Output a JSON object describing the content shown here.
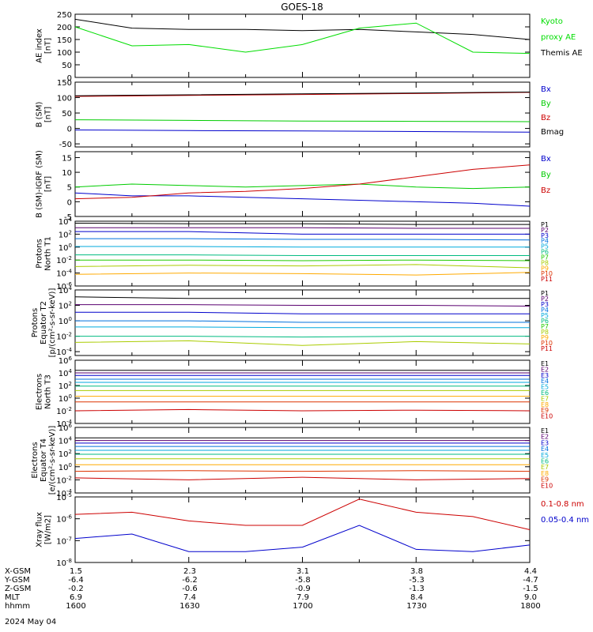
{
  "title": "GOES-18",
  "date_label": "2024 May 04",
  "x_rows": [
    {
      "label": "X-GSM",
      "values": [
        "1.5",
        "2.3",
        "3.1",
        "3.8",
        "4.4"
      ]
    },
    {
      "label": "Y-GSM",
      "values": [
        "-6.4",
        "-6.2",
        "-5.8",
        "-5.3",
        "-4.7"
      ]
    },
    {
      "label": "Z-GSM",
      "values": [
        "-0.2",
        "-0.6",
        "-0.9",
        "-1.3",
        "-1.5"
      ]
    },
    {
      "label": "MLT",
      "values": [
        "6.9",
        "7.4",
        "7.9",
        "8.4",
        "9.0"
      ]
    },
    {
      "label": "hhmm",
      "values": [
        "1600",
        "1630",
        "1700",
        "1730",
        "1800"
      ]
    }
  ],
  "chart_data": [
    {
      "type": "line",
      "ylabel": [
        "AE index",
        "[nT]"
      ],
      "ylim": [
        0,
        250
      ],
      "yticks": [
        "0",
        "50",
        "100",
        "150",
        "200",
        "250"
      ],
      "x": [
        "16:00",
        "16:15",
        "16:30",
        "16:45",
        "17:00",
        "17:15",
        "17:30",
        "17:45",
        "18:00"
      ],
      "legend": [
        {
          "text": "Kyoto",
          "color": "#00dd00"
        },
        {
          "text": "proxy AE",
          "color": "#00dd00"
        },
        {
          "text": "Themis AE",
          "color": "#000000"
        }
      ],
      "series": [
        {
          "name": "Themis AE",
          "color": "#000000",
          "values": [
            230,
            195,
            190,
            190,
            185,
            190,
            180,
            170,
            150
          ]
        },
        {
          "name": "Kyoto proxy AE",
          "color": "#00dd00",
          "values": [
            200,
            125,
            130,
            100,
            130,
            195,
            215,
            100,
            95
          ]
        }
      ]
    },
    {
      "type": "line",
      "ylabel": [
        "B (SM)",
        "[nT]"
      ],
      "ylim": [
        -60,
        150
      ],
      "yticks": [
        "-50",
        "0",
        "50",
        "100",
        "150"
      ],
      "x": [
        "16:00",
        "16:30",
        "17:00",
        "17:30",
        "18:00"
      ],
      "legend": [
        {
          "text": "Bx",
          "color": "#0000cc"
        },
        {
          "text": "By",
          "color": "#00cc00"
        },
        {
          "text": "Bz",
          "color": "#cc0000"
        },
        {
          "text": "Bmag",
          "color": "#000000"
        }
      ],
      "series": [
        {
          "name": "Bx",
          "color": "#0000cc",
          "values": [
            -5,
            -7,
            -8,
            -10,
            -12
          ]
        },
        {
          "name": "By",
          "color": "#00cc00",
          "values": [
            28,
            26,
            24,
            23,
            22
          ]
        },
        {
          "name": "Bz",
          "color": "#cc0000",
          "values": [
            104,
            107,
            110,
            113,
            117
          ]
        },
        {
          "name": "Bmag",
          "color": "#000000",
          "values": [
            106,
            109,
            112,
            115,
            118
          ]
        }
      ]
    },
    {
      "type": "line",
      "ylabel": [
        "B (SM)-IGRF (SM)",
        "[nT]"
      ],
      "ylim": [
        -5,
        17
      ],
      "yticks": [
        "-5",
        "0",
        "5",
        "10",
        "15"
      ],
      "x": [
        "16:00",
        "16:15",
        "16:30",
        "16:45",
        "17:00",
        "17:15",
        "17:30",
        "17:45",
        "18:00"
      ],
      "legend": [
        {
          "text": "Bx",
          "color": "#0000cc"
        },
        {
          "text": "By",
          "color": "#00cc00"
        },
        {
          "text": "Bz",
          "color": "#cc0000"
        }
      ],
      "series": [
        {
          "name": "Bx",
          "color": "#0000cc",
          "values": [
            3,
            2,
            2,
            1.5,
            1,
            0.5,
            0,
            -0.5,
            -1.5
          ]
        },
        {
          "name": "By",
          "color": "#00cc00",
          "values": [
            5,
            6,
            5.5,
            5,
            5.5,
            6,
            5,
            4.5,
            5
          ]
        },
        {
          "name": "Bz",
          "color": "#cc0000",
          "values": [
            1,
            1.5,
            3,
            3.5,
            4.5,
            6,
            8.5,
            11,
            12.5
          ]
        }
      ]
    },
    {
      "type": "line",
      "log": true,
      "ylabel": [
        "Protons",
        "North T1"
      ],
      "ylim": [
        -6,
        4
      ],
      "yticks": [
        "10^4",
        "10^2",
        "10^0",
        "10^-2",
        "10^-4",
        "10^-6"
      ],
      "x": [
        "16:00",
        "16:30",
        "17:00",
        "17:30",
        "18:00"
      ],
      "legend": [
        {
          "text": "P1",
          "color": "#000000"
        },
        {
          "text": "P2",
          "color": "#5a0070"
        },
        {
          "text": "P3",
          "color": "#0000cc"
        },
        {
          "text": "P4",
          "color": "#0070dd"
        },
        {
          "text": "P5",
          "color": "#00aadd"
        },
        {
          "text": "P6",
          "color": "#00bb80"
        },
        {
          "text": "P7",
          "color": "#22cc00"
        },
        {
          "text": "P8",
          "color": "#aacc00"
        },
        {
          "text": "P9",
          "color": "#ffaa00"
        },
        {
          "text": "P10",
          "color": "#dd3300"
        },
        {
          "text": "P11",
          "color": "#cc0000"
        }
      ],
      "series": [
        {
          "name": "P1",
          "color": "#000000",
          "values": [
            3.7,
            3.6,
            3.6,
            3.5,
            3.5
          ]
        },
        {
          "name": "P2",
          "color": "#5a0070",
          "values": [
            3.0,
            3.0,
            3.0,
            2.9,
            2.9
          ]
        },
        {
          "name": "P3",
          "color": "#0000cc",
          "values": [
            2.4,
            2.4,
            2.0,
            2.0,
            2.0
          ]
        },
        {
          "name": "P4",
          "color": "#0070dd",
          "values": [
            1.3,
            1.3,
            1.2,
            1.2,
            1.1
          ]
        },
        {
          "name": "P5",
          "color": "#00aadd",
          "values": [
            0.1,
            0.1,
            0.0,
            0.0,
            0.0
          ]
        },
        {
          "name": "P6",
          "color": "#00bb80",
          "values": [
            -1.2,
            -1.2,
            -1.3,
            -1.3,
            -1.3
          ]
        },
        {
          "name": "P7",
          "color": "#22cc00",
          "values": [
            -2.0,
            -2.0,
            -2.1,
            -2.0,
            -2.1
          ]
        },
        {
          "name": "P8",
          "color": "#aacc00",
          "values": [
            -3.0,
            -2.8,
            -2.9,
            -2.7,
            -3.2
          ]
        },
        {
          "name": "P9",
          "color": "#ffaa00",
          "values": [
            -4.2,
            -4.0,
            -4.1,
            -4.3,
            -3.9
          ]
        }
      ]
    },
    {
      "type": "line",
      "log": true,
      "ylabel": [
        "Protons",
        "Equator T2",
        "[p/(cm²-s-sr-keV)]"
      ],
      "ylim": [
        -4.5,
        4
      ],
      "yticks": [
        "10^4",
        "10^2",
        "10^0",
        "10^-2",
        "10^-4"
      ],
      "x": [
        "16:00",
        "16:30",
        "17:00",
        "17:30",
        "18:00"
      ],
      "legend": [
        {
          "text": "P1",
          "color": "#000000"
        },
        {
          "text": "P2",
          "color": "#5a0070"
        },
        {
          "text": "P3",
          "color": "#0000cc"
        },
        {
          "text": "P4",
          "color": "#0070dd"
        },
        {
          "text": "P5",
          "color": "#00aadd"
        },
        {
          "text": "P6",
          "color": "#00bb80"
        },
        {
          "text": "P7",
          "color": "#22cc00"
        },
        {
          "text": "P8",
          "color": "#aacc00"
        },
        {
          "text": "P9",
          "color": "#ffaa00"
        },
        {
          "text": "P10",
          "color": "#dd3300"
        },
        {
          "text": "P11",
          "color": "#cc0000"
        }
      ],
      "series": [
        {
          "name": "P1",
          "color": "#000000",
          "values": [
            3.1,
            2.9,
            2.9,
            2.9,
            2.9
          ]
        },
        {
          "name": "P2",
          "color": "#5a0070",
          "values": [
            2.1,
            2.1,
            2.0,
            2.0,
            1.9
          ]
        },
        {
          "name": "P3",
          "color": "#0000cc",
          "values": [
            1.1,
            1.1,
            0.9,
            0.9,
            0.9
          ]
        },
        {
          "name": "P4",
          "color": "#0070dd",
          "values": [
            0.0,
            0.0,
            -0.2,
            -0.2,
            -0.2
          ]
        },
        {
          "name": "P5",
          "color": "#00aadd",
          "values": [
            -0.8,
            -0.8,
            -0.9,
            -0.9,
            -0.9
          ]
        },
        {
          "name": "P6",
          "color": "#00bb80",
          "values": [
            -2.0,
            -2.0,
            -2.1,
            -2.0,
            -2.0
          ]
        },
        {
          "name": "P7",
          "color": "#aacc00",
          "values": [
            -2.8,
            -2.6,
            -3.2,
            -2.7,
            -3.0
          ]
        }
      ]
    },
    {
      "type": "line",
      "log": true,
      "ylabel": [
        "Electrons",
        "North T3"
      ],
      "ylim": [
        -4,
        6
      ],
      "yticks": [
        "10^6",
        "10^4",
        "10^2",
        "10^0",
        "10^-2",
        "10^-4"
      ],
      "x": [
        "16:00",
        "16:30",
        "17:00",
        "17:30",
        "18:00"
      ],
      "legend": [
        {
          "text": "E1",
          "color": "#000000"
        },
        {
          "text": "E2",
          "color": "#5a0070"
        },
        {
          "text": "E3",
          "color": "#0000cc"
        },
        {
          "text": "E4",
          "color": "#0070dd"
        },
        {
          "text": "E5",
          "color": "#00aadd"
        },
        {
          "text": "E6",
          "color": "#00bb80"
        },
        {
          "text": "E7",
          "color": "#aacc00"
        },
        {
          "text": "E8",
          "color": "#ffaa00"
        },
        {
          "text": "E9",
          "color": "#dd3300"
        },
        {
          "text": "E10",
          "color": "#cc0000"
        }
      ],
      "series": [
        {
          "name": "E1",
          "color": "#000000",
          "values": [
            4.4,
            4.4,
            4.4,
            4.4,
            4.4
          ]
        },
        {
          "name": "E2",
          "color": "#5a0070",
          "values": [
            4.0,
            4.0,
            4.0,
            4.0,
            4.0
          ]
        },
        {
          "name": "E3",
          "color": "#0000cc",
          "values": [
            3.6,
            3.6,
            3.6,
            3.6,
            3.6
          ]
        },
        {
          "name": "E4",
          "color": "#0070dd",
          "values": [
            3.0,
            3.0,
            3.0,
            3.0,
            3.0
          ]
        },
        {
          "name": "E5",
          "color": "#00aadd",
          "values": [
            2.5,
            2.5,
            2.5,
            2.5,
            2.5
          ]
        },
        {
          "name": "E6",
          "color": "#00bb80",
          "values": [
            1.9,
            1.9,
            1.9,
            1.9,
            1.9
          ]
        },
        {
          "name": "E7",
          "color": "#aacc00",
          "values": [
            1.2,
            1.2,
            1.2,
            1.2,
            1.2
          ]
        },
        {
          "name": "E8",
          "color": "#ffaa00",
          "values": [
            0.3,
            0.3,
            0.3,
            0.3,
            0.3
          ]
        },
        {
          "name": "E9",
          "color": "#dd3300",
          "values": [
            -0.6,
            -0.6,
            -0.6,
            -0.6,
            -0.6
          ]
        },
        {
          "name": "E10",
          "color": "#cc0000",
          "values": [
            -2.0,
            -1.8,
            -2.0,
            -1.9,
            -2.0
          ]
        }
      ]
    },
    {
      "type": "line",
      "log": true,
      "ylabel": [
        "Electrons",
        "Equator T4",
        "[e/(cm²-s-sr-keV)]"
      ],
      "ylim": [
        -4,
        6
      ],
      "yticks": [
        "10^6",
        "10^4",
        "10^2",
        "10^0",
        "10^-2",
        "10^-4"
      ],
      "x": [
        "16:00",
        "16:30",
        "17:00",
        "17:30",
        "18:00"
      ],
      "legend": [
        {
          "text": "E1",
          "color": "#000000"
        },
        {
          "text": "E2",
          "color": "#5a0070"
        },
        {
          "text": "E3",
          "color": "#0000cc"
        },
        {
          "text": "E4",
          "color": "#0070dd"
        },
        {
          "text": "E5",
          "color": "#00aadd"
        },
        {
          "text": "E6",
          "color": "#00bb80"
        },
        {
          "text": "E7",
          "color": "#aacc00"
        },
        {
          "text": "E8",
          "color": "#ffaa00"
        },
        {
          "text": "E9",
          "color": "#dd3300"
        },
        {
          "text": "E10",
          "color": "#cc0000"
        }
      ],
      "series": [
        {
          "name": "E1",
          "color": "#000000",
          "values": [
            4.4,
            4.4,
            4.4,
            4.4,
            4.4
          ]
        },
        {
          "name": "E2",
          "color": "#5a0070",
          "values": [
            4.0,
            4.0,
            4.0,
            4.0,
            4.0
          ]
        },
        {
          "name": "E3",
          "color": "#0000cc",
          "values": [
            3.6,
            3.6,
            3.6,
            3.6,
            3.6
          ]
        },
        {
          "name": "E4",
          "color": "#0070dd",
          "values": [
            3.1,
            3.1,
            3.1,
            3.1,
            3.1
          ]
        },
        {
          "name": "E5",
          "color": "#00aadd",
          "values": [
            2.5,
            2.5,
            2.5,
            2.5,
            2.5
          ]
        },
        {
          "name": "E6",
          "color": "#00bb80",
          "values": [
            1.9,
            1.9,
            1.9,
            1.9,
            1.9
          ]
        },
        {
          "name": "E7",
          "color": "#aacc00",
          "values": [
            1.2,
            1.2,
            1.2,
            1.2,
            1.2
          ]
        },
        {
          "name": "E8",
          "color": "#ffaa00",
          "values": [
            0.3,
            0.3,
            0.3,
            0.3,
            0.3
          ]
        },
        {
          "name": "E9",
          "color": "#dd3300",
          "values": [
            -0.7,
            -0.6,
            -0.7,
            -0.6,
            -0.7
          ]
        },
        {
          "name": "E10",
          "color": "#cc0000",
          "values": [
            -1.7,
            -2.0,
            -1.6,
            -2.0,
            -1.8
          ]
        }
      ]
    },
    {
      "type": "line",
      "log": true,
      "ylabel": [
        "Xray flux",
        "[W/m2]"
      ],
      "ylim": [
        -8,
        -5
      ],
      "yticks": [
        "10^-5",
        "10^-6",
        "10^-7",
        "10^-8"
      ],
      "x": [
        "16:00",
        "16:15",
        "16:30",
        "16:45",
        "17:00",
        "17:15",
        "17:30",
        "17:45",
        "18:00"
      ],
      "legend": [
        {
          "text": "0.1-0.8 nm",
          "color": "#cc0000"
        },
        {
          "text": "0.05-0.4 nm",
          "color": "#0000cc"
        }
      ],
      "series": [
        {
          "name": "0.1-0.8 nm",
          "color": "#cc0000",
          "values": [
            -5.8,
            -5.7,
            -6.1,
            -6.3,
            -6.3,
            -5.1,
            -5.7,
            -5.9,
            -6.5
          ]
        },
        {
          "name": "0.05-0.4 nm",
          "color": "#0000cc",
          "values": [
            -6.9,
            -6.7,
            -7.5,
            -7.5,
            -7.3,
            -6.3,
            -7.4,
            -7.5,
            -7.2
          ]
        }
      ]
    }
  ]
}
